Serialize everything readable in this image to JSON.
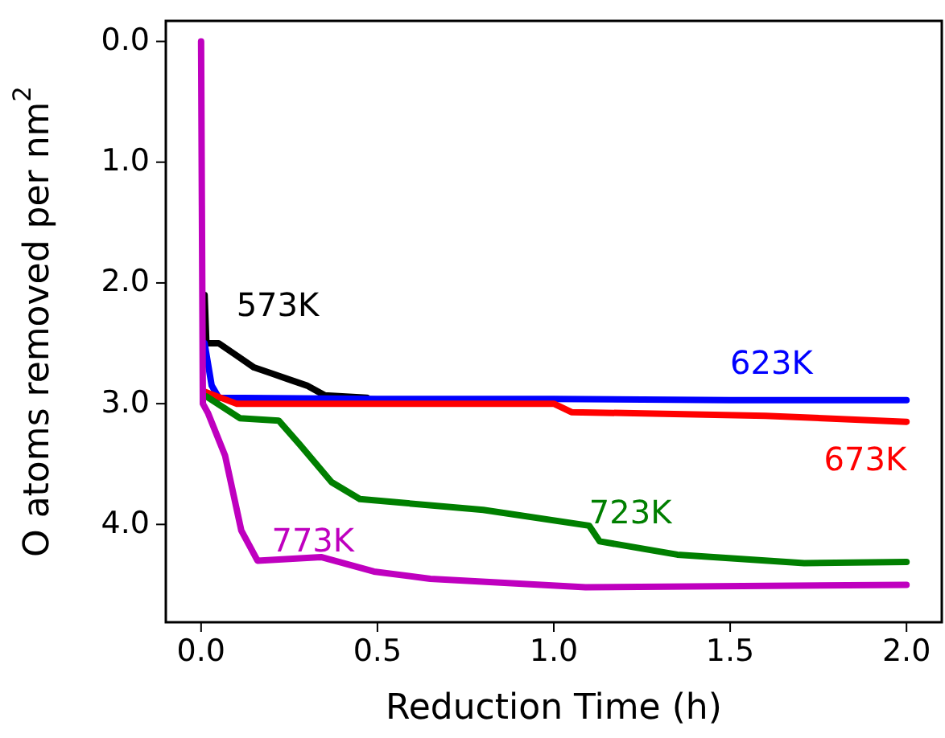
{
  "chart_data": {
    "type": "line",
    "xlabel": "Reduction Time (h)",
    "ylabel": "O atoms removed per nm$^{2}$",
    "xlim": [
      -0.1,
      2.1
    ],
    "ylim": [
      4.81,
      -0.17
    ],
    "xticks": [
      {
        "value": 0,
        "label": "0.0"
      },
      {
        "value": 0.5,
        "label": "0.5"
      },
      {
        "value": 1,
        "label": "1.0"
      },
      {
        "value": 1.5,
        "label": "1.5"
      },
      {
        "value": 2,
        "label": "2.0"
      }
    ],
    "yticks": [
      {
        "value": 0,
        "label": "0.0"
      },
      {
        "value": 1,
        "label": "1.0"
      },
      {
        "value": 2,
        "label": "2.0"
      },
      {
        "value": 3,
        "label": "3.0"
      },
      {
        "value": 4,
        "label": "4.0"
      }
    ],
    "grid": false,
    "marker": "none",
    "line_style": "solid",
    "series": [
      {
        "name": "573K",
        "color": "#000000",
        "x": [
          0.01,
          0.015,
          0.05,
          0.1,
          0.15,
          0.2,
          0.25,
          0.3,
          0.35,
          0.47
        ],
        "values": [
          2.1,
          2.5,
          2.5,
          2.6,
          2.7,
          2.75,
          2.8,
          2.85,
          2.93,
          2.95
        ]
      },
      {
        "name": "623K",
        "color": "#0000ff",
        "x": [
          0.01,
          0.03,
          0.05,
          0.5,
          1.0,
          1.5,
          2.0
        ],
        "values": [
          2.5,
          2.85,
          2.95,
          2.96,
          2.96,
          2.97,
          2.97
        ]
      },
      {
        "name": "673K",
        "color": "#ff0000",
        "x": [
          0.01,
          0.1,
          0.5,
          1.0,
          1.05,
          1.6,
          2.0
        ],
        "values": [
          2.9,
          3.0,
          3.0,
          3.0,
          3.07,
          3.1,
          3.15
        ]
      },
      {
        "name": "723K",
        "color": "#007f00",
        "x": [
          0.015,
          0.11,
          0.22,
          0.28,
          0.37,
          0.45,
          0.8,
          1.1,
          1.13,
          1.35,
          1.71,
          2.0
        ],
        "values": [
          2.94,
          3.12,
          3.14,
          3.34,
          3.65,
          3.79,
          3.88,
          4.01,
          4.14,
          4.25,
          4.32,
          4.31
        ]
      },
      {
        "name": "773K",
        "color": "#bf00bf",
        "x": [
          0,
          0.005,
          0.02,
          0.068,
          0.114,
          0.16,
          0.34,
          0.49,
          0.65,
          1.09,
          2.0
        ],
        "values": [
          0,
          3.0,
          3.08,
          3.43,
          4.05,
          4.3,
          4.27,
          4.39,
          4.45,
          4.52,
          4.5
        ]
      }
    ]
  }
}
